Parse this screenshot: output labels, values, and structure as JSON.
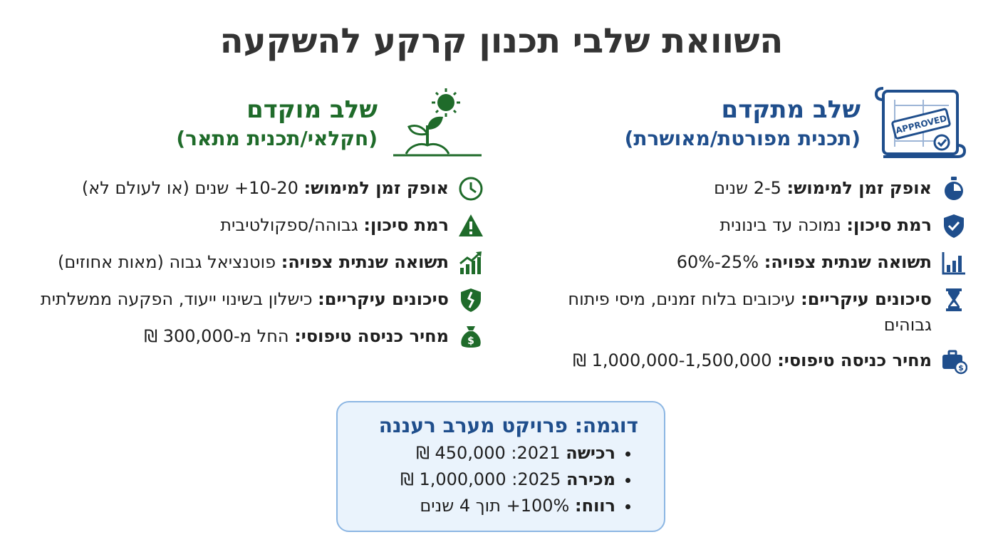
{
  "title": "השוואת שלבי תכנון קרקע להשקעה",
  "advanced": {
    "title": "שלב מתקדם",
    "subtitle": "(תכנית מפורטת/מאושרת)",
    "stamp": "APPROVED",
    "accent": "#1f4e8c",
    "items": [
      {
        "icon": "stopwatch-icon",
        "label": "אופק זמן למימוש:",
        "value": " 2-5 שנים"
      },
      {
        "icon": "shield-check-icon",
        "label": "רמת סיכון:",
        "value": " נמוכה עד בינונית"
      },
      {
        "icon": "bar-chart-icon",
        "label": "תשואה שנתית צפויה:",
        "value": " 25%-60%"
      },
      {
        "icon": "hourglass-icon",
        "label": "סיכונים עיקריים:",
        "value": " עיכובים בלוח זמנים, מיסי פיתוח גבוהים"
      },
      {
        "icon": "briefcase-money-icon",
        "label": "מחיר כניסה טיפוסי:",
        "value": " 1,000,000-1,500,000 ₪"
      }
    ]
  },
  "early": {
    "title": "שלב מוקדם",
    "subtitle": "(חקלאי/תכנית מתאר)",
    "accent": "#1f6b2a",
    "items": [
      {
        "icon": "clock-icon",
        "label": "אופק זמן למימוש:",
        "value": " 10-20+ שנים (או לעולם לא)"
      },
      {
        "icon": "warning-icon",
        "label": "רמת סיכון:",
        "value": " גבוהה/ספקולטיבית"
      },
      {
        "icon": "growth-chart-icon",
        "label": "תשואה שנתית צפויה:",
        "value": " פוטנציאל גבוה (מאות אחוזים)"
      },
      {
        "icon": "broken-shield-icon",
        "label": "סיכונים עיקריים:",
        "value": " כישלון בשינוי ייעוד, הפקעה ממשלתית"
      },
      {
        "icon": "money-bag-icon",
        "label": "מחיר כניסה טיפוסי:",
        "value": " החל מ-300,000 ₪"
      }
    ]
  },
  "example": {
    "title": "דוגמה: פרויקט מערב רעננה",
    "bullets": [
      {
        "label": "רכישה",
        "value": " 2021: 450,000 ₪"
      },
      {
        "label": "מכירה",
        "value": " 2025: 1,000,000 ₪"
      },
      {
        "label": "רווח:",
        "value": " 100%+ תוך 4 שנים"
      }
    ]
  }
}
